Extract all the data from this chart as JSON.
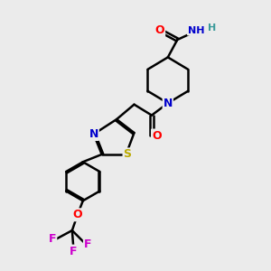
{
  "bg_color": "#ebebeb",
  "atom_colors": {
    "C": "#000000",
    "N": "#0000cc",
    "O": "#ff0000",
    "S": "#bbaa00",
    "F": "#cc00cc",
    "H": "#3a9a9a"
  },
  "bond_color": "#000000",
  "bond_width": 1.8,
  "figsize": [
    3.0,
    3.0
  ],
  "dpi": 100
}
